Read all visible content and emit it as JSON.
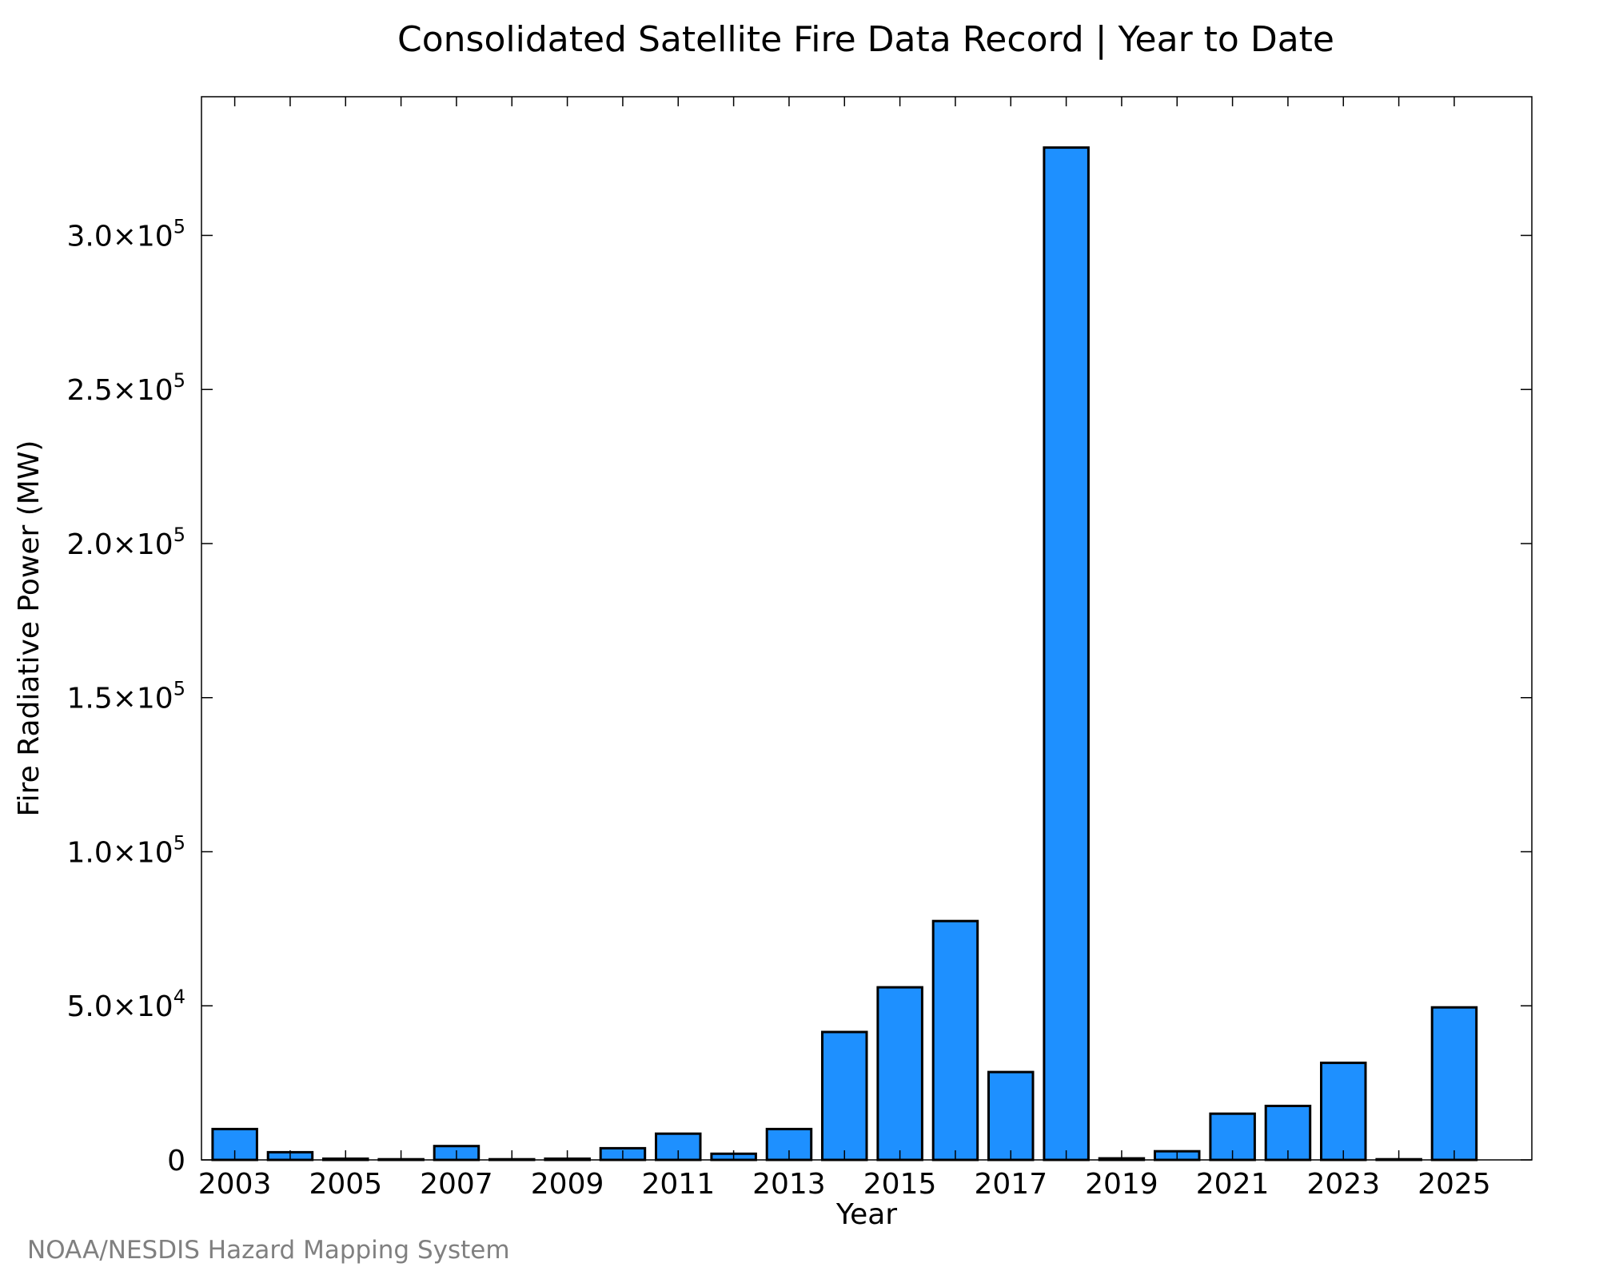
{
  "chart_data": {
    "type": "bar",
    "title": "Consolidated Satellite Fire Data Record | Year to Date",
    "xlabel": "Year",
    "ylabel": "Fire Radiative Power (MW)",
    "categories": [
      2003,
      2004,
      2005,
      2006,
      2007,
      2008,
      2009,
      2010,
      2011,
      2012,
      2013,
      2014,
      2015,
      2016,
      2017,
      2018,
      2019,
      2020,
      2021,
      2022,
      2023,
      2024,
      2025
    ],
    "values": [
      10000,
      2500,
      400,
      200,
      4500,
      200,
      400,
      3800,
      8500,
      2000,
      10000,
      41500,
      56000,
      77500,
      28500,
      328500,
      500,
      2800,
      15000,
      17500,
      31500,
      200,
      49500
    ],
    "xticks": [
      "2003",
      "2005",
      "2007",
      "2009",
      "2011",
      "2013",
      "2015",
      "2017",
      "2019",
      "2021",
      "2023",
      "2025"
    ],
    "yticks": [
      {
        "value": 0,
        "mantissa": "0",
        "exponent": ""
      },
      {
        "value": 50000,
        "mantissa": "5.0×10",
        "exponent": "4"
      },
      {
        "value": 100000,
        "mantissa": "1.0×10",
        "exponent": "5"
      },
      {
        "value": 150000,
        "mantissa": "1.5×10",
        "exponent": "5"
      },
      {
        "value": 200000,
        "mantissa": "2.0×10",
        "exponent": "5"
      },
      {
        "value": 250000,
        "mantissa": "2.5×10",
        "exponent": "5"
      },
      {
        "value": 300000,
        "mantissa": "3.0×10",
        "exponent": "5"
      }
    ],
    "xlim": [
      2002.4,
      2026.4
    ],
    "ylim": [
      0,
      345000
    ],
    "grid": false,
    "bar_color": "#1E90FF",
    "edge_color": "#000000"
  },
  "credit": "NOAA/NESDIS Hazard Mapping System"
}
